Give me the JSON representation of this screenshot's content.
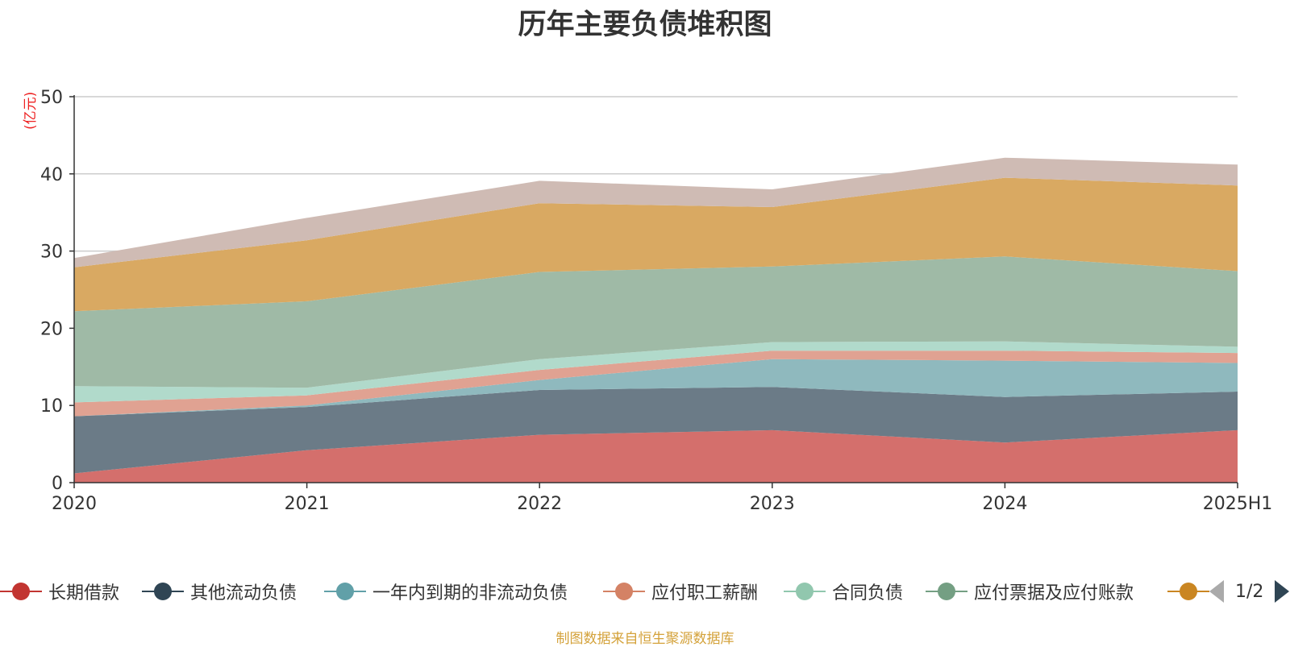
{
  "title": "历年主要负债堆积图",
  "unit_label": "(亿元)",
  "footer": "制图数据来自恒生聚源数据库",
  "pager": {
    "text": "1/2"
  },
  "chart_data": {
    "type": "area",
    "stacked": true,
    "categories": [
      "2020",
      "2021",
      "2022",
      "2023",
      "2024",
      "2025H1"
    ],
    "ylim": [
      0,
      50
    ],
    "yticks": [
      0,
      10,
      20,
      30,
      40,
      50
    ],
    "grid": true,
    "legend_position": "bottom",
    "series": [
      {
        "name": "长期借款",
        "color": "#d46f6c",
        "legend_color": "#c23531",
        "values": [
          1.2,
          4.2,
          6.2,
          6.8,
          5.2,
          6.8
        ]
      },
      {
        "name": "其他流动负债",
        "color": "#6b7b87",
        "legend_color": "#2f4554",
        "values": [
          7.4,
          5.6,
          5.8,
          5.6,
          5.9,
          5.0
        ]
      },
      {
        "name": "一年内到期的非流动负债",
        "color": "#8fb9be",
        "legend_color": "#61a0a8",
        "values": [
          0.0,
          0.2,
          1.3,
          3.6,
          4.7,
          3.7
        ]
      },
      {
        "name": "应付职工薪酬",
        "color": "#e0a292",
        "legend_color": "#d48265",
        "values": [
          1.8,
          1.3,
          1.3,
          1.1,
          1.3,
          1.3
        ]
      },
      {
        "name": "合同负债",
        "color": "#b1dacb",
        "legend_color": "#91c7ae",
        "values": [
          2.1,
          1.0,
          1.4,
          1.1,
          1.2,
          0.8
        ]
      },
      {
        "name": "应付票据及应付账款",
        "color": "#9fbaa6",
        "legend_color": "#749f83",
        "values": [
          9.7,
          11.2,
          11.3,
          9.8,
          11.0,
          9.8
        ]
      },
      {
        "name": "",
        "color": "#d9a962",
        "legend_color": "#ca8622",
        "values": [
          5.7,
          7.9,
          8.9,
          7.7,
          10.2,
          11.1
        ]
      },
      {
        "name": "",
        "color": "#cfbbb4",
        "legend_color": "#bda29a",
        "values": [
          1.2,
          2.9,
          2.9,
          2.3,
          2.6,
          2.7
        ]
      }
    ]
  }
}
